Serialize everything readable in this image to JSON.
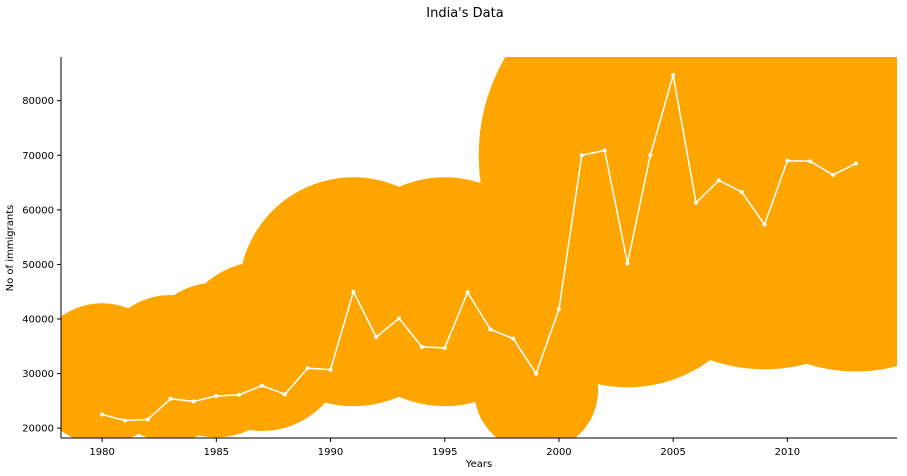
{
  "chart_data": {
    "type": "scatter",
    "title": "India's Data",
    "xlabel": "Years",
    "ylabel": "No of immigrants",
    "xlim": [
      1978.2,
      2014.8
    ],
    "ylim": [
      18200,
      88000
    ],
    "xticks": [
      1980,
      1985,
      1990,
      1995,
      2000,
      2005,
      2010
    ],
    "yticks": [
      20000,
      30000,
      40000,
      50000,
      60000,
      70000,
      80000
    ],
    "grid": false,
    "colors": {
      "bubble": "#FFA500",
      "line": "#ffffff"
    },
    "bubbles": [
      {
        "x": 1980,
        "y": 30000
      },
      {
        "x": 1983,
        "y": 31000
      },
      {
        "x": 1985,
        "y": 32500
      },
      {
        "x": 1987,
        "y": 35000
      },
      {
        "x": 1991,
        "y": 45000
      },
      {
        "x": 1995,
        "y": 45000
      },
      {
        "x": 1999,
        "y": 27000
      },
      {
        "x": 2003,
        "y": 53000
      },
      {
        "x": 2005,
        "y": 70000
      },
      {
        "x": 2009,
        "y": 61000
      },
      {
        "x": 2013,
        "y": 60000
      }
    ],
    "series": [
      {
        "x": [
          1980,
          1981,
          1982,
          1983,
          1984,
          1985,
          1986,
          1987,
          1988,
          1989,
          1990,
          1991,
          1992,
          1993,
          1994,
          1995,
          1996,
          1997,
          1998,
          1999,
          2000,
          2001,
          2002,
          2003,
          2004,
          2005,
          2006,
          2007,
          2008,
          2009,
          2010,
          2011,
          2012,
          2013
        ],
        "values": [
          22500,
          21400,
          21600,
          25400,
          24900,
          25900,
          26100,
          27800,
          26200,
          31000,
          30700,
          45000,
          36700,
          40100,
          34900,
          34700,
          44900,
          38100,
          36400,
          30000,
          41800,
          70000,
          70900,
          50200,
          70000,
          84700,
          61300,
          65400,
          63300,
          57300,
          69000,
          68900,
          66400,
          68500
        ]
      }
    ]
  }
}
